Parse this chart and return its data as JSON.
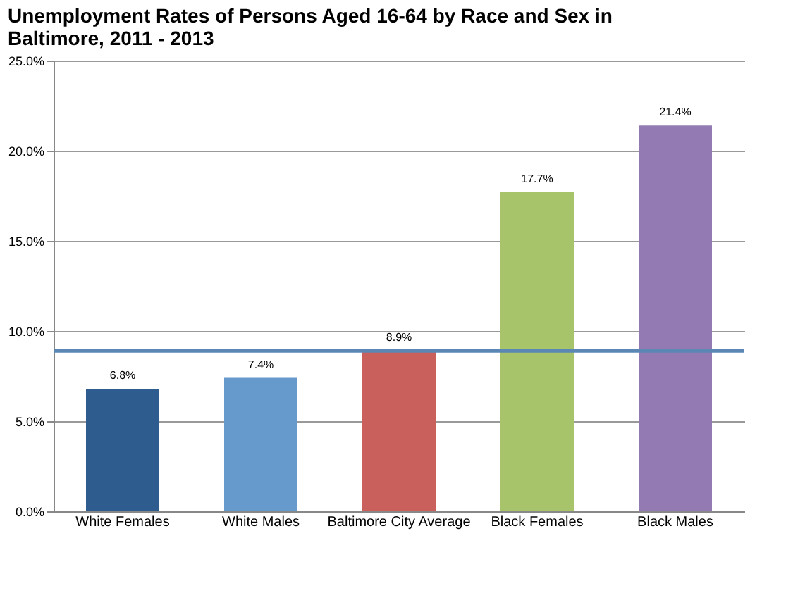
{
  "chart_data": {
    "type": "bar",
    "title": "Unemployment Rates of Persons Aged 16-64 by Race and Sex in Baltimore, 2011 - 2013",
    "categories": [
      "White Females",
      "White Males",
      "Baltimore City Average",
      "Black Females",
      "Black Males"
    ],
    "values": [
      6.8,
      7.4,
      8.9,
      17.7,
      21.4
    ],
    "colors": [
      "#2e5c8e",
      "#6699cc",
      "#c9605c",
      "#a8c46a",
      "#937ab3"
    ],
    "value_labels": [
      "6.8%",
      "7.4%",
      "8.9%",
      "17.7%",
      "21.4%"
    ],
    "ylim": [
      0,
      25
    ],
    "yticks": [
      {
        "value": 0,
        "label": "0.0%"
      },
      {
        "value": 5,
        "label": "5.0%"
      },
      {
        "value": 10,
        "label": "10.0%"
      },
      {
        "value": 15,
        "label": "15.0%"
      },
      {
        "value": 20,
        "label": "20.0%"
      },
      {
        "value": 25,
        "label": "25.0%"
      }
    ],
    "ref_lines": [
      {
        "axis": "y",
        "value": 8.9,
        "color": "#5b87b5"
      }
    ],
    "grid": "y"
  }
}
